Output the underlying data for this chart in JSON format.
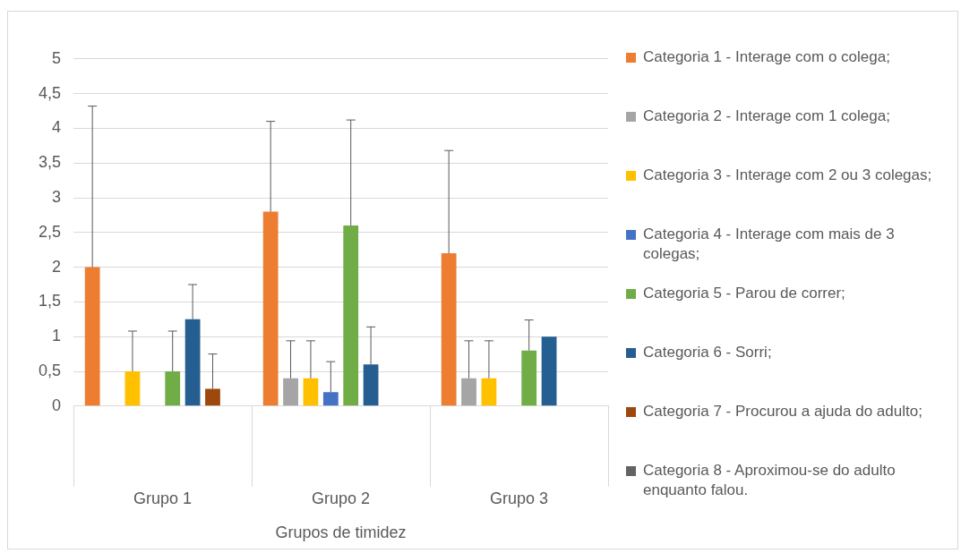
{
  "chart_data": {
    "type": "bar",
    "xlabel": "Grupos de timidez",
    "categories": [
      "Grupo 1",
      "Grupo 2",
      "Grupo 3"
    ],
    "ylim": [
      0,
      5
    ],
    "yticks": [
      0,
      {
        "value": 0.5,
        "label": "0,5"
      },
      1,
      {
        "value": 1.5,
        "label": "1,5"
      },
      2,
      {
        "value": 2.5,
        "label": "2,5"
      },
      3,
      {
        "value": 3.5,
        "label": "3,5"
      },
      4,
      {
        "value": 4.5,
        "label": "4,5"
      },
      5
    ],
    "grid": "y",
    "legend": "right",
    "series": [
      {
        "name": "Categoria 1 - Interage com o colega;",
        "color": "#ed7d31",
        "values": [
          2,
          2.8,
          2.2
        ],
        "errors": [
          [
            2,
            4.32
          ],
          [
            2.8,
            4.1
          ],
          [
            2.2,
            3.68
          ]
        ]
      },
      {
        "name": "Categoria 2 - Interage com 1 colega;",
        "color": "#a5a5a5",
        "values": [
          0,
          0.4,
          0.4
        ],
        "errors": [
          null,
          [
            0.4,
            0.94
          ],
          [
            0.4,
            0.94
          ]
        ]
      },
      {
        "name": "Categoria 3 - Interage com 2 ou 3 colegas;",
        "color": "#ffc000",
        "values": [
          0.5,
          0.4,
          0.4
        ],
        "errors": [
          [
            0.5,
            1.08
          ],
          [
            0.4,
            0.94
          ],
          [
            0.4,
            0.94
          ]
        ]
      },
      {
        "name": "Categoria 4 - Interage com mais de 3 colegas;",
        "color": "#4472c4",
        "values": [
          0,
          0.2,
          0
        ],
        "errors": [
          null,
          [
            0.2,
            0.64
          ],
          null
        ]
      },
      {
        "name": "Categoria 5 - Parou de correr;",
        "color": "#70ad47",
        "values": [
          0.5,
          2.6,
          0.8
        ],
        "errors": [
          [
            0.5,
            1.08
          ],
          [
            2.6,
            4.12
          ],
          [
            0.8,
            1.24
          ]
        ]
      },
      {
        "name": "Categoria 6 - Sorri;",
        "color": "#255e91",
        "values": [
          1.25,
          0.6,
          1
        ],
        "errors": [
          [
            1.25,
            1.75
          ],
          [
            0.6,
            1.14
          ],
          null
        ]
      },
      {
        "name": "Categoria 7 - Procurou a ajuda do adulto;",
        "color": "#9e480e",
        "values": [
          0.25,
          0,
          0
        ],
        "errors": [
          [
            0.25,
            0.75
          ],
          null,
          null
        ]
      },
      {
        "name": "Categoria 8 - Aproximou-se do adulto enquanto falou.",
        "color": "#636363",
        "values": [
          0,
          0,
          0
        ],
        "errors": [
          null,
          null,
          null
        ]
      }
    ]
  }
}
